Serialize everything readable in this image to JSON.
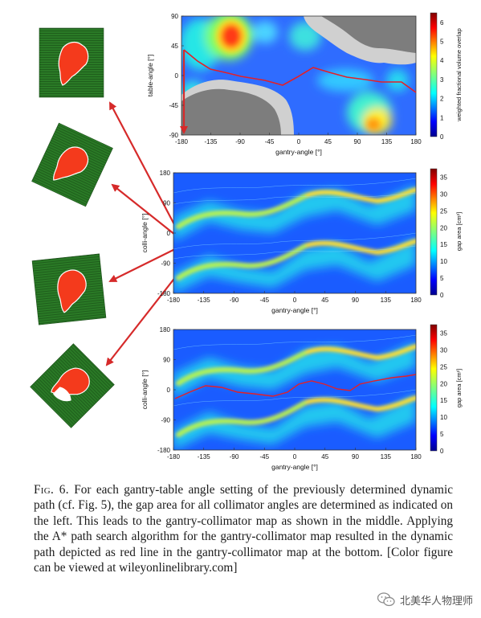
{
  "figure": {
    "colors": {
      "path": "#e32028",
      "arrow": "#d62a2a",
      "field": "#f43a1c",
      "board": "#2f7d2a"
    },
    "icons": [
      "collimator-field-icon",
      "wechat-icon"
    ],
    "panels": [
      {
        "ylabel": "table-angle [°]",
        "xlabel": "gantry-angle [°]",
        "cbar_label": "weighted fractional volume overlap",
        "cbar_ticks": [
          "0",
          "1",
          "2",
          "3",
          "4",
          "5",
          "6"
        ],
        "xticks": [
          "-180",
          "-135",
          "-90",
          "-45",
          "0",
          "45",
          "90",
          "135",
          "180"
        ],
        "yticks": [
          "90",
          "45",
          "0",
          "-45",
          "-90"
        ]
      },
      {
        "ylabel": "colli-angle [°]",
        "xlabel": "gantry-angle [°]",
        "cbar_label": "gap area [cm²]",
        "cbar_ticks": [
          "0",
          "5",
          "10",
          "15",
          "20",
          "25",
          "30",
          "35"
        ],
        "xticks": [
          "-180",
          "-135",
          "-90",
          "-45",
          "0",
          "45",
          "90",
          "135",
          "180"
        ],
        "yticks": [
          "180",
          "90",
          "0",
          "-90",
          "-180"
        ]
      },
      {
        "ylabel": "colli-angle [°]",
        "xlabel": "gantry-angle [°]",
        "cbar_label": "gap area [cm²]",
        "cbar_ticks": [
          "0",
          "5",
          "10",
          "15",
          "20",
          "25",
          "30",
          "35"
        ],
        "xticks": [
          "-180",
          "-135",
          "-90",
          "-45",
          "0",
          "45",
          "90",
          "135",
          "180"
        ],
        "yticks": [
          "180",
          "90",
          "0",
          "-90",
          "-180"
        ]
      }
    ]
  },
  "caption": {
    "label": "Fig. 6.",
    "text": "For each gantry-table angle setting of the previously determined dynamic path (cf. Fig. 5), the gap area for all collimator angles are determined as indicated on the left. This leads to the gantry-collimator map as shown in the middle. Applying the A* path search algorithm for the gantry-collimator map resulted in the dynamic path depicted as red line in the gantry-collimator map at the bottom. [Color figure can be viewed at wileyonlinelibrary.com]"
  },
  "watermark": {
    "text": "北美华人物理师"
  }
}
